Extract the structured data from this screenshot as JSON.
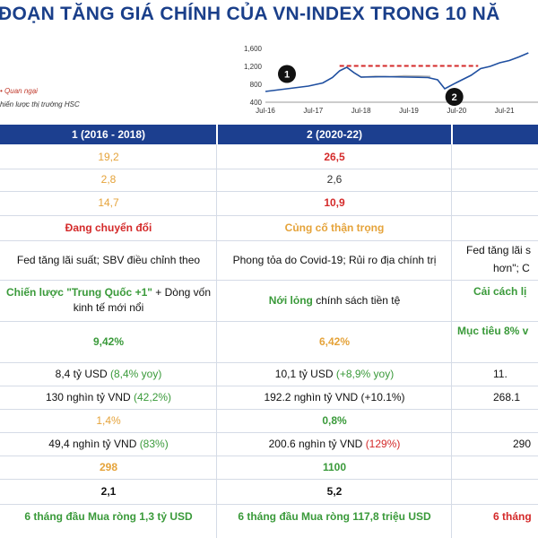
{
  "title": "ĐOẠN TĂNG GIÁ CHÍNH CỦA VN-INDEX TRONG 10 NĂ",
  "legend": {
    "item": "• Quan ngại",
    "source": "hiến lược thị trường HSC"
  },
  "chart_data": {
    "type": "line",
    "x_ticks": [
      "Jul-16",
      "Jul-17",
      "Jul-18",
      "Jul-19",
      "Jul-20",
      "Jul-21"
    ],
    "y_ticks": [
      400,
      800,
      1200,
      1600
    ],
    "ylim": [
      400,
      1600
    ],
    "markers": [
      "1",
      "2"
    ],
    "series": [
      {
        "color": "#1f4fa0",
        "x": [
          2016.5,
          2016.8,
          2017.1,
          2017.4,
          2017.7,
          2017.9,
          2018.05,
          2018.2,
          2018.35,
          2018.5,
          2019.0,
          2019.5,
          2019.9,
          2020.1,
          2020.25,
          2020.5,
          2020.8,
          2021.0,
          2021.2,
          2021.4,
          2021.6,
          2021.8,
          2022.0
        ],
        "y": [
          640,
          680,
          720,
          760,
          830,
          950,
          1100,
          1180,
          1060,
          960,
          970,
          960,
          950,
          900,
          700,
          840,
          1000,
          1150,
          1200,
          1280,
          1330,
          1410,
          1500
        ]
      },
      {
        "color": "#b0b0b0",
        "x": [
          2018.05,
          2018.2,
          2018.35,
          2018.5,
          2018.8,
          2019.1,
          2019.4,
          2019.7,
          2019.95
        ],
        "y": [
          1100,
          1180,
          1060,
          960,
          980,
          970,
          990,
          985,
          975
        ]
      },
      {
        "color": "#d42a2a",
        "style": "dashed",
        "x": [
          2018.05,
          2020.95
        ],
        "y": [
          1210,
          1210
        ]
      }
    ]
  },
  "columns": [
    {
      "label": "1 (2016 - 2018)"
    },
    {
      "label": "2 (2020-22)"
    }
  ],
  "rows": [
    {
      "c1": "19,2",
      "c2": "26,5"
    },
    {
      "c1": "2,8",
      "c2": "2,6"
    },
    {
      "c1": "14,7",
      "c2": "10,9"
    },
    {
      "c1": "Đang chuyển đổi",
      "c2": "Củng cố thận trọng"
    },
    {
      "c1": "Fed tăng lãi suất; SBV điều chỉnh theo",
      "c2": "Phong tỏa do Covid-19; Rủi ro địa chính trị",
      "c3": "Fed tăng lãi s",
      "c3b": "hơn\"; C"
    },
    {
      "c1a": "Chiến lược \"Trung Quốc +1\"",
      "c1b": " + Dòng vốn kinh tế mới nổi",
      "c2a": "Nới lỏng",
      "c2b": " chính sách tiền tệ",
      "c3": "Cải cách lị"
    },
    {
      "c1": "9,42%",
      "c2": "6,42%",
      "c3": "Mục tiêu 8% v"
    },
    {
      "c1a": "8,4 tỷ USD ",
      "c1b": "(8,4% yoy)",
      "c2a": "10,1 tỷ USD ",
      "c2b": "(+8,9% yoy)",
      "c3": "11."
    },
    {
      "c1a": "130 nghìn tỷ VND ",
      "c1b": "(42,2%)",
      "c2": "192.2 nghìn tỷ VND (+10.1%)",
      "c3": "268.1"
    },
    {
      "c1": "1,4%",
      "c2": "0,8%"
    },
    {
      "c1a": "49,4 nghìn tỷ VND ",
      "c1b": "(83%)",
      "c2a": "200.6 nghìn tỷ VND ",
      "c2b": "(129%)",
      "c3": "290"
    },
    {
      "c1": "298",
      "c2": "1100"
    },
    {
      "c1": "2,1",
      "c2": "5,2"
    },
    {
      "c1": "6 tháng đầu Mua ròng 1,3 tỷ USD",
      "c2": "6 tháng đầu Mua ròng 117,8 triệu USD",
      "c3": "6 tháng"
    }
  ]
}
